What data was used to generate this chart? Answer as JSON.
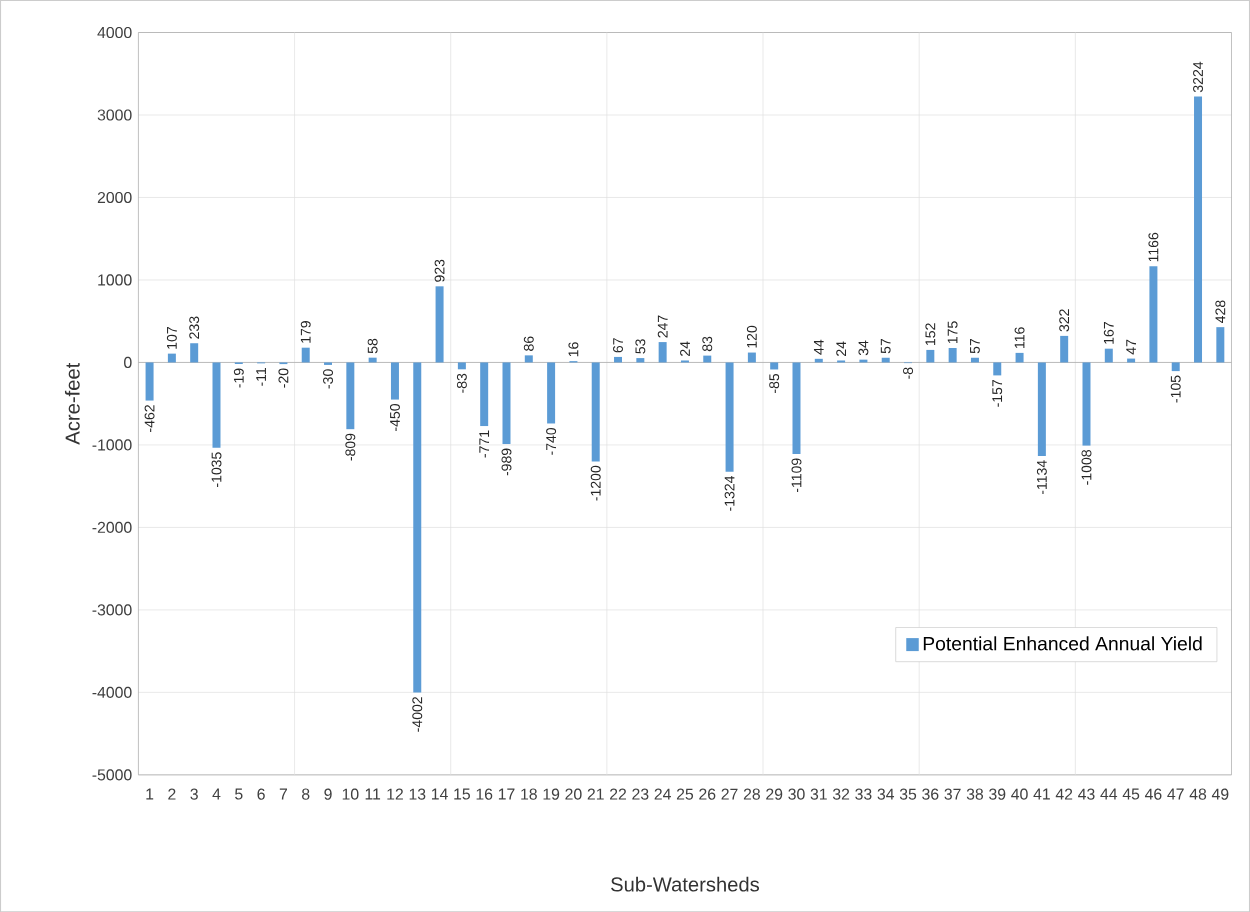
{
  "chart_data": {
    "type": "bar",
    "xlabel": "Sub-Watersheds",
    "ylabel": "Acre-feet",
    "categories": [
      "1",
      "2",
      "3",
      "4",
      "5",
      "6",
      "7",
      "8",
      "9",
      "10",
      "11",
      "12",
      "13",
      "14",
      "15",
      "16",
      "17",
      "18",
      "19",
      "20",
      "21",
      "22",
      "23",
      "24",
      "25",
      "26",
      "27",
      "28",
      "29",
      "30",
      "31",
      "32",
      "33",
      "34",
      "35",
      "36",
      "37",
      "38",
      "39",
      "40",
      "41",
      "42",
      "43",
      "44",
      "45",
      "46",
      "47",
      "48",
      "49"
    ],
    "series": [
      {
        "name": "Potential Enhanced Annual Yield",
        "color": "#5b9bd5",
        "values": [
          -462,
          107,
          233,
          -1035,
          -19,
          -11,
          -20,
          179,
          -30,
          -809,
          58,
          -450,
          -4002,
          923,
          -83,
          -771,
          -989,
          86,
          -740,
          16,
          -1200,
          67,
          53,
          247,
          24,
          83,
          -1324,
          120,
          -85,
          -1109,
          44,
          24,
          34,
          57,
          -8,
          152,
          175,
          57,
          -157,
          116,
          -1134,
          322,
          -1008,
          167,
          47,
          1166,
          -105,
          3224,
          428
        ]
      }
    ],
    "ylim": [
      -5000,
      4000
    ],
    "yticks": [
      -5000,
      -4000,
      -3000,
      -2000,
      -1000,
      0,
      1000,
      2000,
      3000,
      4000
    ],
    "grid": true,
    "legend": "bottom right",
    "data_labels": true
  }
}
